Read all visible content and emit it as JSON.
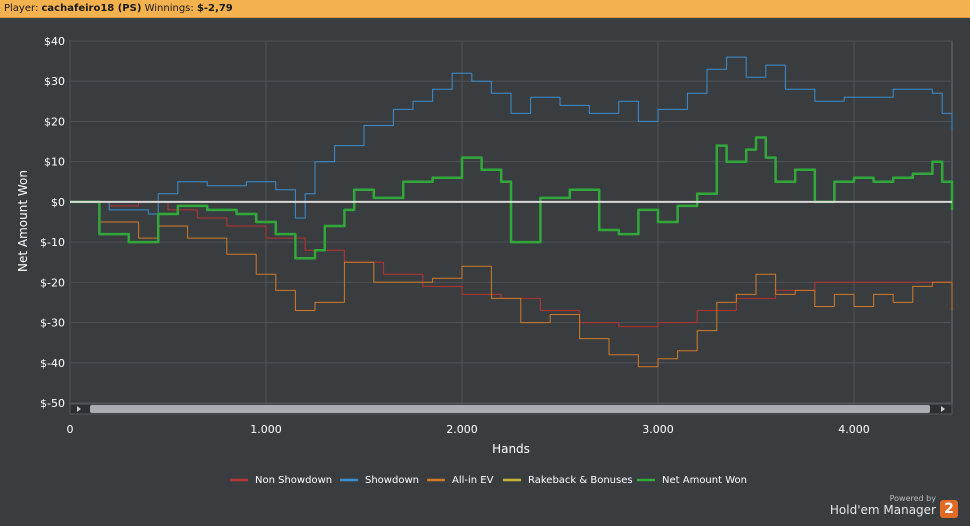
{
  "header": {
    "player_label": "Player:",
    "player_name": "cachafeiro18 (PS)",
    "winnings_label": "Winnings:",
    "winnings_value": "$-2,79"
  },
  "branding": {
    "powered_by": "Powered by",
    "product": "Hold'em Manager",
    "version_badge": "2"
  },
  "colors": {
    "background": "#3a3d40",
    "plot_bg": "#3a3d40",
    "header_bg": "#f4b24e",
    "non_showdown": "#b83232",
    "showdown": "#3b8fd0",
    "allin_ev": "#d07a26",
    "rakeback": "#c8b43a",
    "net_won": "#31a83a"
  },
  "chart_data": {
    "type": "line",
    "title": "",
    "xlabel": "Hands",
    "ylabel": "Net Amount Won",
    "xlim": [
      0,
      4500
    ],
    "ylim": [
      -50,
      40
    ],
    "x_ticks": [
      0,
      1000,
      2000,
      3000,
      4000
    ],
    "x_tick_labels": [
      "0",
      "1.000",
      "2.000",
      "3.000",
      "4.000"
    ],
    "y_ticks": [
      40,
      30,
      20,
      10,
      0,
      -10,
      -20,
      -30,
      -40,
      -50
    ],
    "y_tick_labels": [
      "$40",
      "$30",
      "$20",
      "$10",
      "$0",
      "$-10",
      "$-20",
      "$-30",
      "$-40",
      "$-50"
    ],
    "grid": true,
    "legend_position": "bottom",
    "series": [
      {
        "name": "Non Showdown",
        "color": "#b83232",
        "x": [
          0,
          200,
          350,
          500,
          650,
          800,
          1000,
          1200,
          1400,
          1600,
          1800,
          2000,
          2200,
          2400,
          2600,
          2800,
          3000,
          3200,
          3400,
          3600,
          3800,
          4000,
          4200,
          4500
        ],
        "y": [
          0,
          -1,
          0,
          -2,
          -4,
          -6,
          -9,
          -12,
          -15,
          -18,
          -21,
          -23,
          -24,
          -27,
          -30,
          -31,
          -30,
          -27,
          -24,
          -22,
          -20,
          -20,
          -20,
          -21
        ]
      },
      {
        "name": "Showdown",
        "color": "#3b8fd0",
        "x": [
          0,
          200,
          400,
          450,
          550,
          700,
          900,
          1050,
          1150,
          1200,
          1250,
          1350,
          1500,
          1650,
          1750,
          1850,
          1950,
          2050,
          2150,
          2250,
          2350,
          2500,
          2650,
          2800,
          2900,
          3000,
          3150,
          3250,
          3350,
          3450,
          3550,
          3650,
          3800,
          3950,
          4100,
          4200,
          4300,
          4400,
          4450,
          4500
        ],
        "y": [
          0,
          -2,
          -3,
          2,
          5,
          4,
          5,
          3,
          -4,
          2,
          10,
          14,
          19,
          23,
          25,
          28,
          32,
          30,
          27,
          22,
          26,
          24,
          22,
          25,
          20,
          23,
          27,
          33,
          36,
          31,
          34,
          28,
          25,
          26,
          26,
          28,
          28,
          27,
          22,
          18
        ]
      },
      {
        "name": "All-in EV",
        "color": "#d07a26",
        "x": [
          0,
          150,
          350,
          450,
          600,
          800,
          950,
          1050,
          1150,
          1250,
          1400,
          1550,
          1700,
          1850,
          2000,
          2150,
          2300,
          2450,
          2600,
          2750,
          2900,
          3000,
          3100,
          3200,
          3300,
          3400,
          3500,
          3600,
          3700,
          3800,
          3900,
          4000,
          4100,
          4200,
          4300,
          4400,
          4500
        ],
        "y": [
          0,
          -5,
          -9,
          -6,
          -9,
          -13,
          -18,
          -22,
          -27,
          -25,
          -15,
          -20,
          -20,
          -19,
          -16,
          -24,
          -30,
          -28,
          -34,
          -38,
          -41,
          -39,
          -37,
          -32,
          -25,
          -23,
          -18,
          -23,
          -22,
          -26,
          -23,
          -26,
          -23,
          -25,
          -21,
          -20,
          -27
        ]
      },
      {
        "name": "Rakeback & Bonuses",
        "color": "#c8b43a",
        "x": [
          0,
          4500
        ],
        "y": [
          0,
          0
        ]
      },
      {
        "name": "Net Amount Won",
        "color": "#31a83a",
        "x": [
          0,
          150,
          300,
          450,
          550,
          700,
          850,
          950,
          1050,
          1150,
          1250,
          1300,
          1400,
          1450,
          1550,
          1700,
          1850,
          2000,
          2100,
          2200,
          2250,
          2400,
          2550,
          2700,
          2800,
          2900,
          3000,
          3100,
          3200,
          3300,
          3350,
          3450,
          3500,
          3550,
          3600,
          3700,
          3800,
          3900,
          4000,
          4100,
          4200,
          4300,
          4400,
          4450,
          4500
        ],
        "y": [
          0,
          -8,
          -10,
          -3,
          -1,
          -2,
          -3,
          -5,
          -8,
          -14,
          -12,
          -6,
          -2,
          3,
          1,
          5,
          6,
          11,
          8,
          5,
          -10,
          1,
          3,
          -7,
          -8,
          -2,
          -5,
          -1,
          2,
          14,
          10,
          13,
          16,
          11,
          5,
          8,
          0,
          5,
          6,
          5,
          6,
          7,
          10,
          5,
          -2
        ]
      }
    ]
  }
}
